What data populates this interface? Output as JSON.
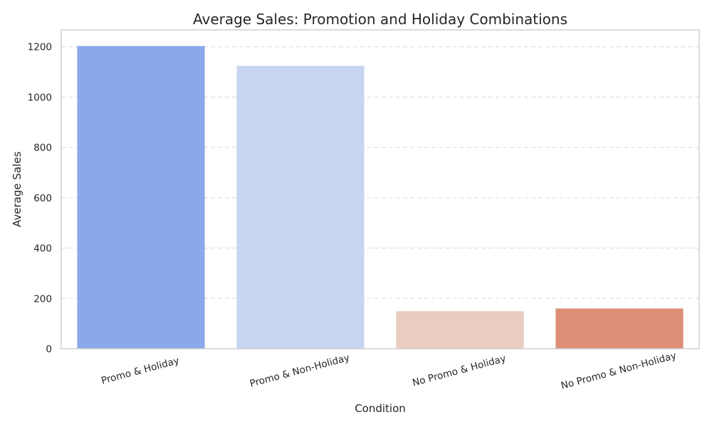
{
  "chart_data": {
    "type": "bar",
    "title": "Average Sales: Promotion and Holiday Combinations",
    "xlabel": "Condition",
    "ylabel": "Average Sales",
    "categories": [
      "Promo & Holiday",
      "Promo & Non-Holiday",
      "No Promo & Holiday",
      "No Promo & Non-Holiday"
    ],
    "values": [
      1203,
      1124,
      149,
      160
    ],
    "colors": [
      "#8aa8ea",
      "#c7d5f0",
      "#e9cdbe",
      "#de8f78"
    ],
    "ylim": [
      0,
      1267
    ],
    "yticks": [
      0,
      200,
      400,
      600,
      800,
      1000,
      1200
    ],
    "grid": "y-dashed",
    "legend": "none"
  }
}
